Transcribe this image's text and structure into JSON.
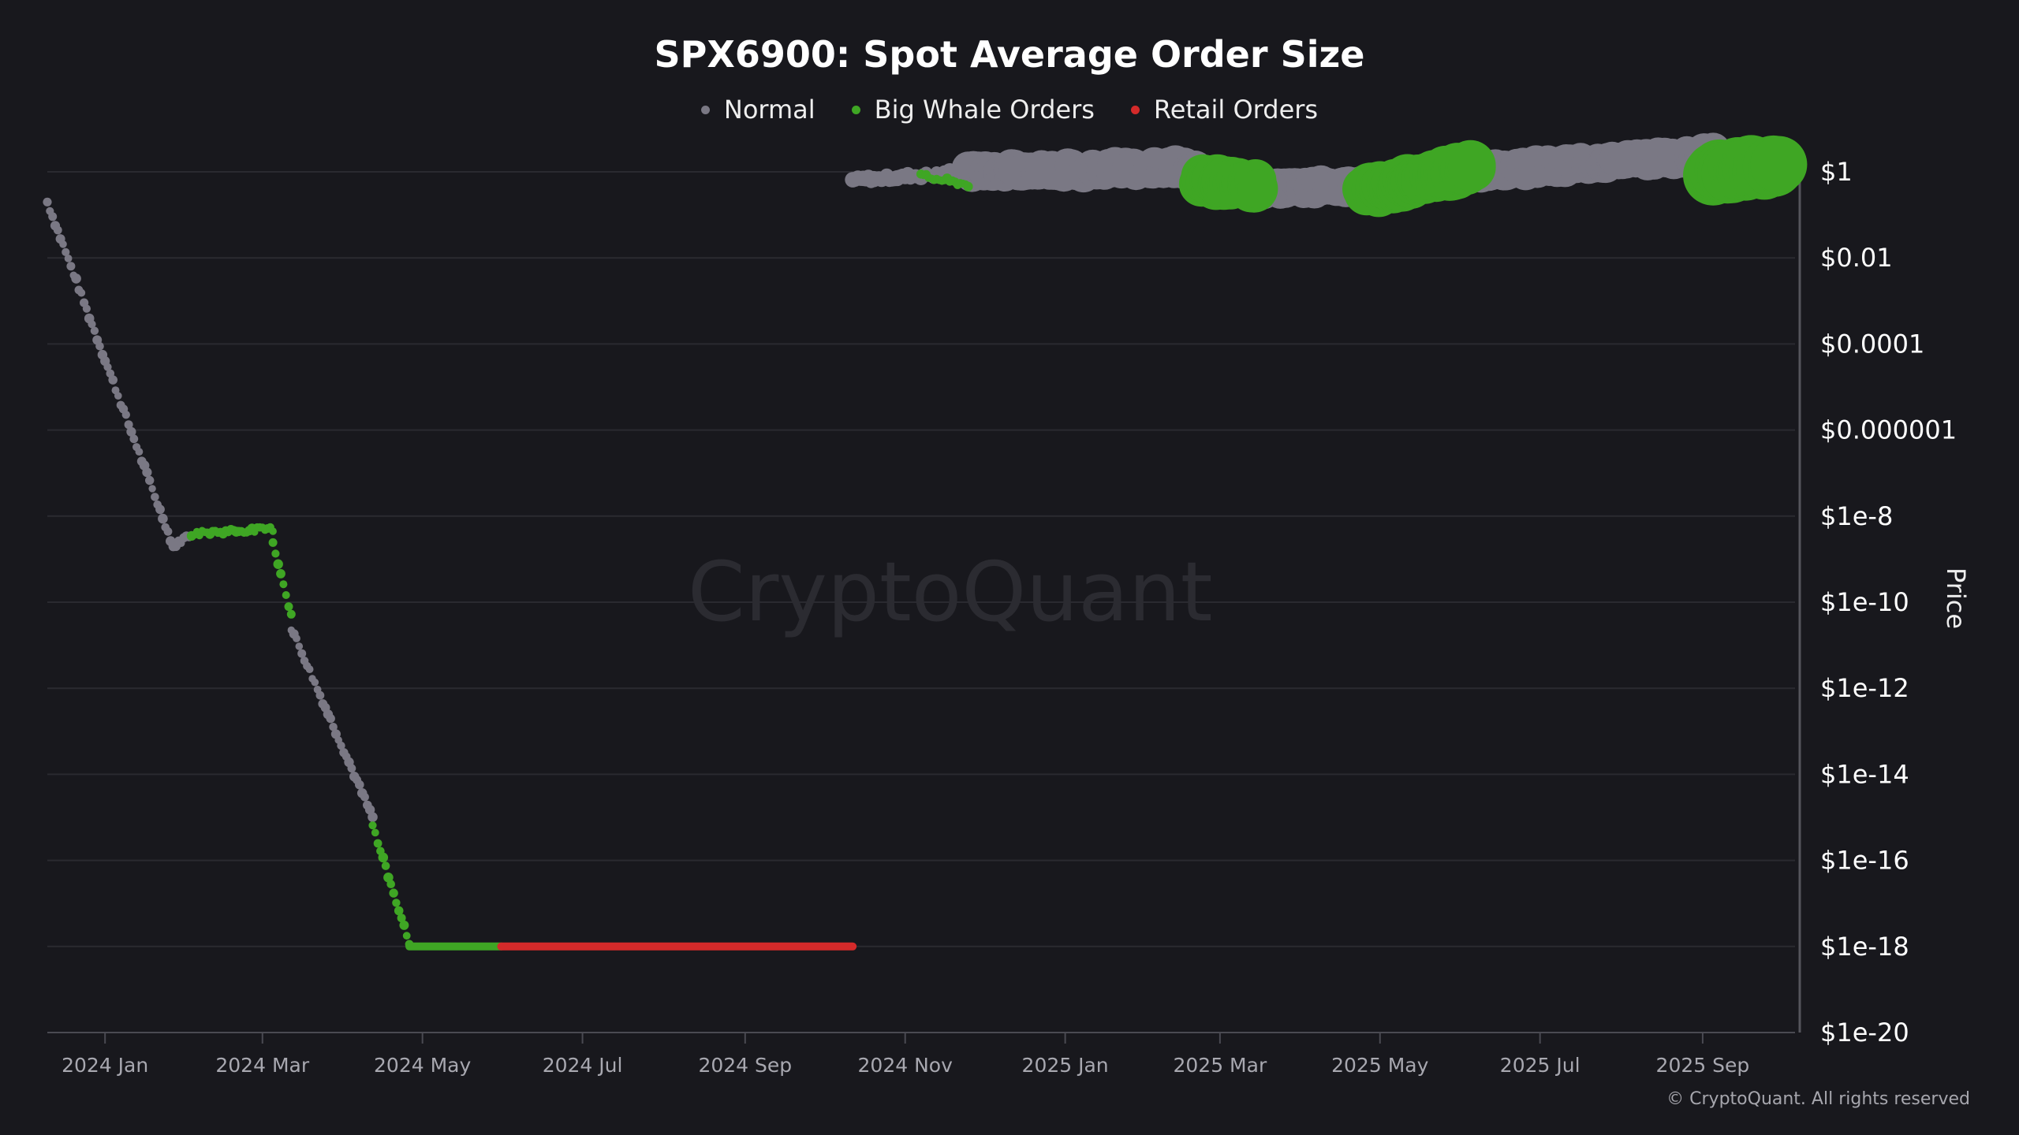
{
  "title": "SPX6900: Spot Average Order Size",
  "legend": [
    {
      "label": "Normal",
      "color": "#7a7884"
    },
    {
      "label": "Big Whale Orders",
      "color": "#3fa624"
    },
    {
      "label": "Retail Orders",
      "color": "#d42a2a"
    }
  ],
  "watermark": "CryptoQuant",
  "copyright": "© CryptoQuant. All rights reserved",
  "chart_data": {
    "type": "scatter",
    "title": "SPX6900: Spot Average Order Size",
    "xlabel": "",
    "ylabel": "Price",
    "y_scale": "log",
    "grid": true,
    "legend_position": "top-center",
    "x_ticks": [
      "2024 Jan",
      "2024 Mar",
      "2024 May",
      "2024 Jul",
      "2024 Sep",
      "2024 Nov",
      "2025 Jan",
      "2025 Mar",
      "2025 May",
      "2025 Jul",
      "2025 Sep"
    ],
    "y_ticks": [
      "$1",
      "$0.01",
      "$0.0001",
      "$0.000001",
      "$1e-8",
      "$1e-10",
      "$1e-12",
      "$1e-14",
      "$1e-16",
      "$1e-18",
      "$1e-20"
    ],
    "xlim": [
      "2023-12-10",
      "2025-10-05"
    ],
    "ylim": [
      1e-20,
      1
    ],
    "series": [
      {
        "name": "Normal",
        "color": "#7a7884",
        "segments": [
          {
            "start": "2023-12-10",
            "end": "2024-01-27",
            "log10_start": -0.7,
            "log10_end": -8.7,
            "size": "small"
          },
          {
            "start": "2024-01-27",
            "end": "2024-02-03",
            "log10_start": -8.7,
            "log10_end": -8.4,
            "size": "small"
          },
          {
            "start": "2024-03-12",
            "end": "2024-04-12",
            "log10_start": -10.6,
            "log10_end": -15.0,
            "size": "small"
          },
          {
            "start": "2024-10-12",
            "end": "2024-11-25",
            "log10_start": -0.2,
            "log10_end": 0.0,
            "size": "medium"
          },
          {
            "start": "2024-11-25",
            "end": "2025-02-20",
            "log10_start": 0.0,
            "log10_end": 0.1,
            "size": "large"
          },
          {
            "start": "2025-03-15",
            "end": "2025-04-25",
            "log10_start": -0.4,
            "log10_end": -0.3,
            "size": "large"
          },
          {
            "start": "2025-06-05",
            "end": "2025-09-05",
            "log10_start": 0.0,
            "log10_end": 0.4,
            "size": "large"
          }
        ]
      },
      {
        "name": "Big Whale Orders",
        "color": "#3fa624",
        "segments": [
          {
            "start": "2024-02-03",
            "end": "2024-03-05",
            "log10_start": -8.4,
            "log10_end": -8.3,
            "size": "small"
          },
          {
            "start": "2024-03-05",
            "end": "2024-03-12",
            "log10_start": -8.6,
            "log10_end": -10.3,
            "size": "small"
          },
          {
            "start": "2024-04-12",
            "end": "2024-04-26",
            "log10_start": -15.2,
            "log10_end": -17.9,
            "size": "small"
          },
          {
            "start": "2024-04-26",
            "end": "2024-05-31",
            "log10_start": -18.0,
            "log10_end": -18.0,
            "size": "line"
          },
          {
            "start": "2024-11-07",
            "end": "2024-11-25",
            "log10_start": -0.1,
            "log10_end": -0.3,
            "size": "small"
          },
          {
            "start": "2025-02-22",
            "end": "2025-03-15",
            "log10_start": -0.2,
            "log10_end": -0.3,
            "size": "xlarge"
          },
          {
            "start": "2025-04-25",
            "end": "2025-06-05",
            "log10_start": -0.5,
            "log10_end": 0.1,
            "size": "xlarge"
          },
          {
            "start": "2025-09-05",
            "end": "2025-09-30",
            "log10_start": 0.0,
            "log10_end": 0.1,
            "size": "xxlarge"
          }
        ]
      },
      {
        "name": "Retail Orders",
        "color": "#d42a2a",
        "segments": [
          {
            "start": "2024-05-31",
            "end": "2024-10-12",
            "log10_start": -18.0,
            "log10_end": -18.0,
            "size": "line"
          }
        ]
      }
    ]
  }
}
